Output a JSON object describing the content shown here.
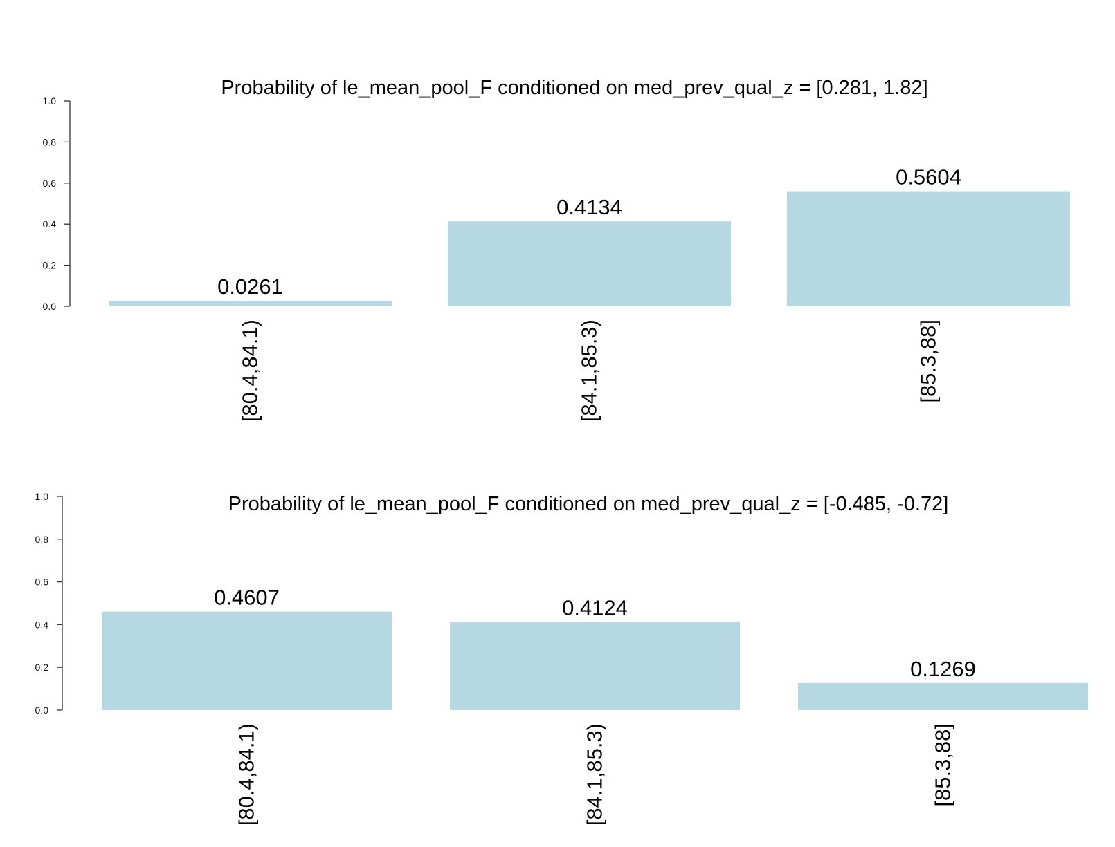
{
  "chart_data": [
    {
      "type": "bar",
      "title": "Probability of le_mean_pool_F conditioned on med_prev_qual_z = [0.281, 1.82]",
      "categories": [
        "[80.4,84.1)",
        "[84.1,85.3)",
        "[85.3,88]"
      ],
      "values": [
        0.0261,
        0.4134,
        0.5604
      ],
      "value_labels": [
        "0.0261",
        "0.4134",
        "0.5604"
      ],
      "ylim": [
        0,
        1
      ],
      "yticks": [
        0,
        0.2,
        0.4,
        0.6,
        0.8,
        1.0
      ],
      "ytick_labels": [
        "0.0",
        "0.2",
        "0.4",
        "0.6",
        "0.8",
        "1.0"
      ],
      "xlabel": "",
      "ylabel": "",
      "bar_color": "#b6d8e2"
    },
    {
      "type": "bar",
      "title": "Probability of le_mean_pool_F conditioned on med_prev_qual_z = [-0.485, -0.72]",
      "categories": [
        "[80.4,84.1)",
        "[84.1,85.3)",
        "[85.3,88]"
      ],
      "values": [
        0.4607,
        0.4124,
        0.1269
      ],
      "value_labels": [
        "0.4607",
        "0.4124",
        "0.1269"
      ],
      "ylim": [
        0,
        1
      ],
      "yticks": [
        0,
        0.2,
        0.4,
        0.6,
        0.8,
        1.0
      ],
      "ytick_labels": [
        "0.0",
        "0.2",
        "0.4",
        "0.6",
        "0.8",
        "1.0"
      ],
      "xlabel": "",
      "ylabel": "",
      "bar_color": "#b6d8e2"
    }
  ]
}
